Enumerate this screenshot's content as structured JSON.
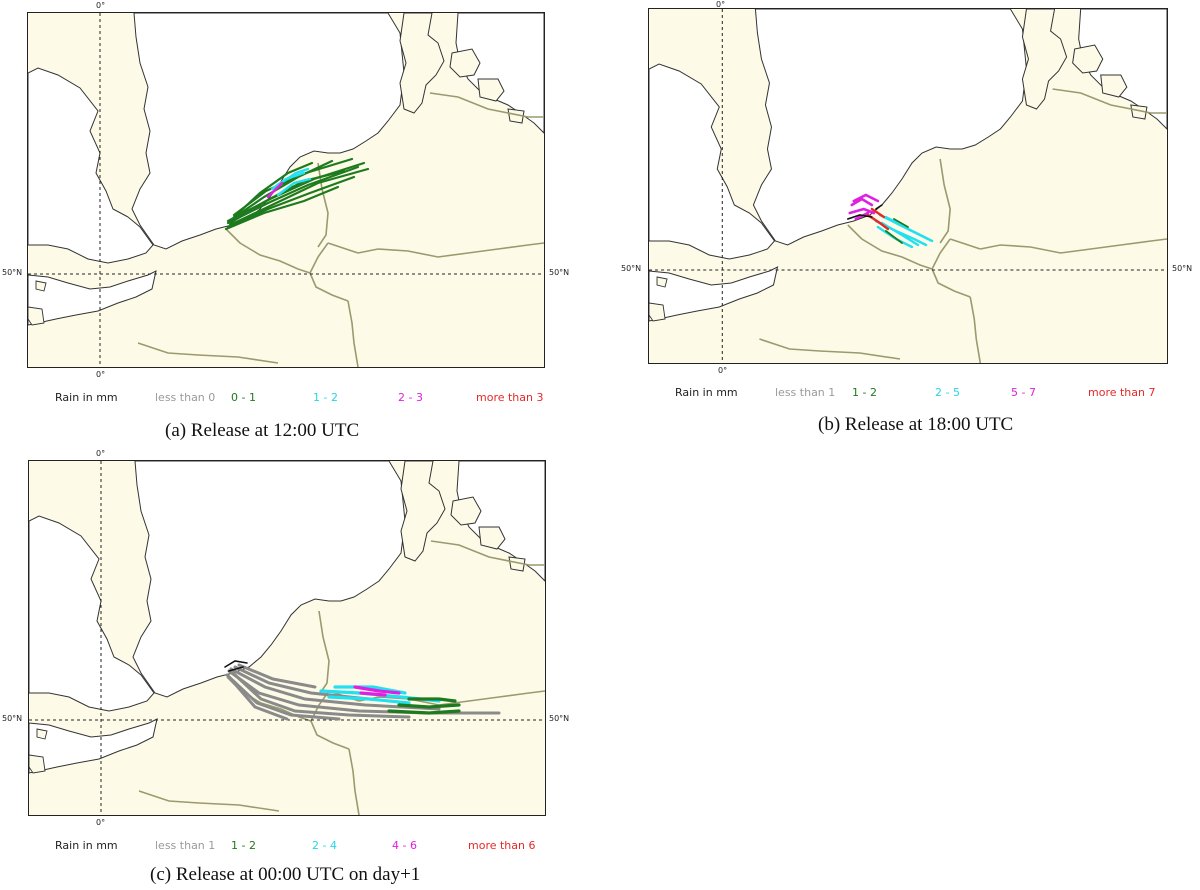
{
  "colors": {
    "land": "#fdfbe8",
    "sea": "#ffffff",
    "coast": "#333333",
    "border": "#9a9a6e",
    "grid": "#222222",
    "cat_grey": "#8a8a8a",
    "cat_green": "#1e7a1e",
    "cat_cyan": "#22e0f0",
    "cat_magenta": "#e020e0",
    "cat_red": "#e82828",
    "cat_black": "#111111"
  },
  "panels": [
    {
      "id": "a",
      "caption": "(a) Release at 12:00 UTC",
      "lon_top_label": "0°",
      "lon_bottom_label": "0°",
      "lat_left_label": "50°N",
      "lat_right_label": "50°N",
      "legend": {
        "title": "Rain in mm",
        "items": [
          {
            "label": "less than 0",
            "color": "#9a9a9a"
          },
          {
            "label": "0 - 1",
            "color": "#1e7a1e"
          },
          {
            "label": "1 - 2",
            "color": "#22d8e8"
          },
          {
            "label": "2 - 3",
            "color": "#e020e0"
          },
          {
            "label": "more than 3",
            "color": "#e82828"
          }
        ]
      }
    },
    {
      "id": "b",
      "caption": "(b) Release at 18:00 UTC",
      "lon_top_label": "0°",
      "lon_bottom_label": "0°",
      "lat_left_label": "50°N",
      "lat_right_label": "50°N",
      "legend": {
        "title": "Rain in mm",
        "items": [
          {
            "label": "less than 1",
            "color": "#9a9a9a"
          },
          {
            "label": "1 - 2",
            "color": "#1e7a1e"
          },
          {
            "label": "2 - 5",
            "color": "#22d8e8"
          },
          {
            "label": "5 - 7",
            "color": "#e020e0"
          },
          {
            "label": "more than 7",
            "color": "#e82828"
          }
        ]
      }
    },
    {
      "id": "c",
      "caption": "(c) Release at 00:00 UTC on day+1",
      "lon_top_label": "0°",
      "lon_bottom_label": "0°",
      "lat_left_label": "50°N",
      "lat_right_label": "50°N",
      "legend": {
        "title": "Rain in mm",
        "items": [
          {
            "label": "less than 1",
            "color": "#9a9a9a"
          },
          {
            "label": "1 - 2",
            "color": "#1e7a1e"
          },
          {
            "label": "2 - 4",
            "color": "#22d8e8"
          },
          {
            "label": "4 - 6",
            "color": "#e020e0"
          },
          {
            "label": "more than 6",
            "color": "#e82828"
          }
        ]
      }
    }
  ]
}
